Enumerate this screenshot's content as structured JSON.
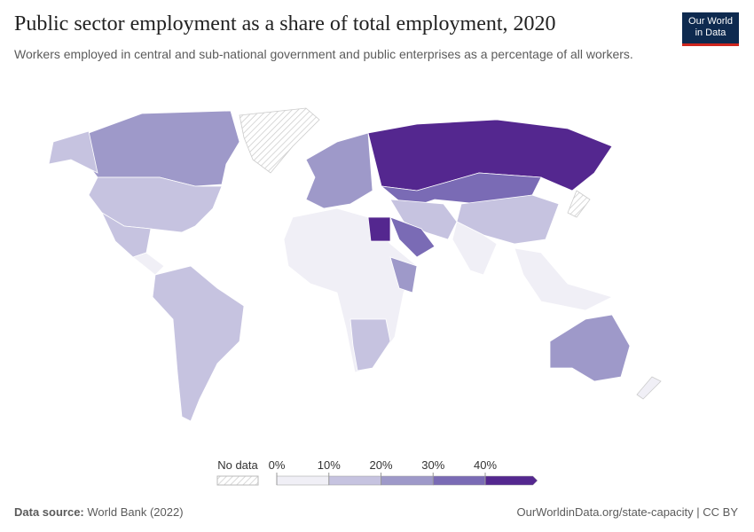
{
  "header": {
    "title": "Public sector employment as a share of total employment, 2020",
    "subtitle": "Workers employed in central and sub-national government and public enterprises as a percentage of all workers.",
    "logo": [
      "Our World",
      "in Data"
    ]
  },
  "legend": {
    "no_data": "No data",
    "ticks": [
      {
        "value": 0,
        "label": "0%"
      },
      {
        "value": 10,
        "label": "10%"
      },
      {
        "value": 20,
        "label": "20%"
      },
      {
        "value": 30,
        "label": "30%"
      },
      {
        "value": 40,
        "label": "40%"
      }
    ],
    "colors": [
      "#f0eff6",
      "#c6c3e0",
      "#9e99c9",
      "#7a6bb5",
      "#54278f"
    ]
  },
  "footer": {
    "source_label": "Data source:",
    "source": "World Bank (2022)",
    "url": "OurWorldinData.org/state-capacity | CC BY"
  }
}
